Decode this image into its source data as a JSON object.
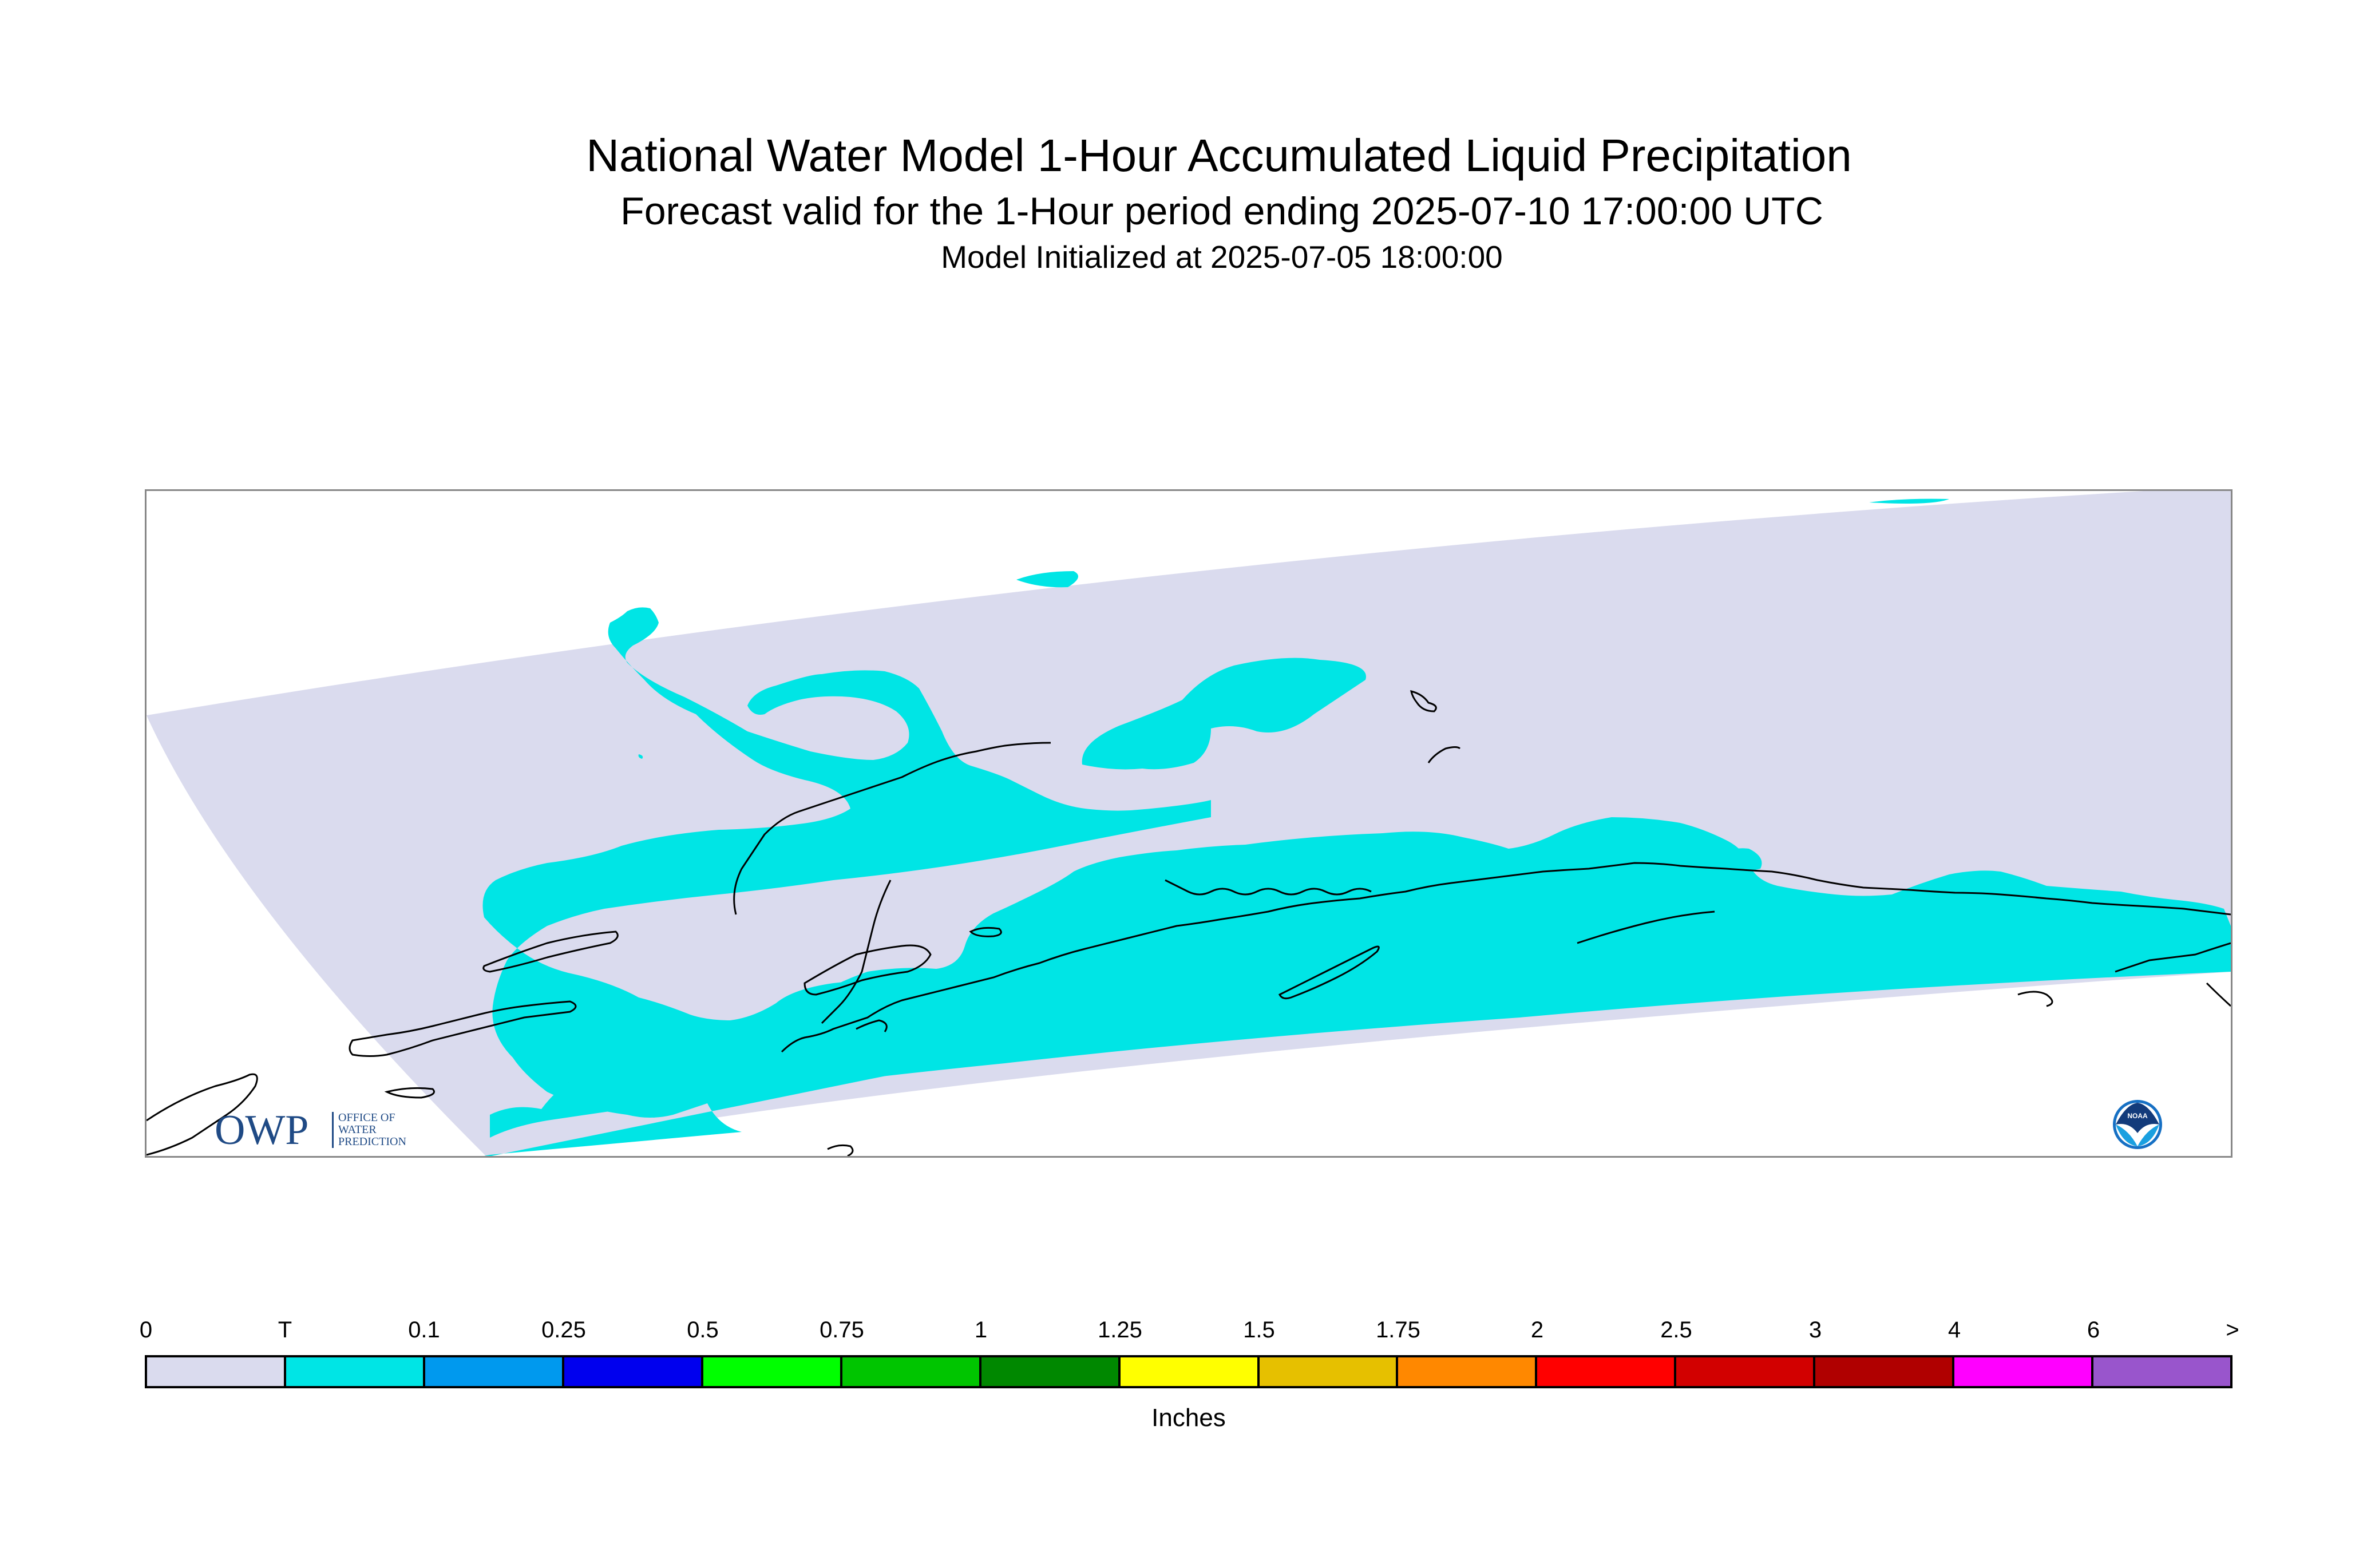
{
  "header": {
    "title": "National Water Model 1-Hour Accumulated Liquid Precipitation",
    "subtitle": "Forecast valid for the 1-Hour period ending 2025-07-10 17:00:00 UTC",
    "init_line": "Model Initialized at 2025-07-05 18:00:00"
  },
  "map": {
    "colors": {
      "domain_no_precip": "#dadbee",
      "trace_precip": "#00e5e5",
      "coastline": "#000000",
      "frame": "#888888"
    },
    "owp_logo": {
      "letters": "OWP",
      "line1": "OFFICE OF",
      "line2": "WATER",
      "line3": "PREDICTION"
    },
    "noaa_logo": {
      "icon": "noaa-seal-icon",
      "text": "NOAA"
    }
  },
  "legend": {
    "labels": [
      "0",
      "T",
      "0.1",
      "0.25",
      "0.5",
      "0.75",
      "1",
      "1.25",
      "1.5",
      "1.75",
      "2",
      "2.5",
      "3",
      "4",
      "6",
      ">"
    ],
    "swatches": [
      {
        "color": "#dadbee"
      },
      {
        "color": "#00e5e5"
      },
      {
        "color": "#0099ee"
      },
      {
        "color": "#0000ee"
      },
      {
        "color": "#00ff00"
      },
      {
        "color": "#00c500"
      },
      {
        "color": "#008800"
      },
      {
        "color": "#ffff00"
      },
      {
        "color": "#e6c000"
      },
      {
        "color": "#ff8800"
      },
      {
        "color": "#ff0000"
      },
      {
        "color": "#d20000"
      },
      {
        "color": "#b00000"
      },
      {
        "color": "#ff00ff"
      },
      {
        "color": "#9955cc"
      }
    ],
    "units": "Inches"
  }
}
